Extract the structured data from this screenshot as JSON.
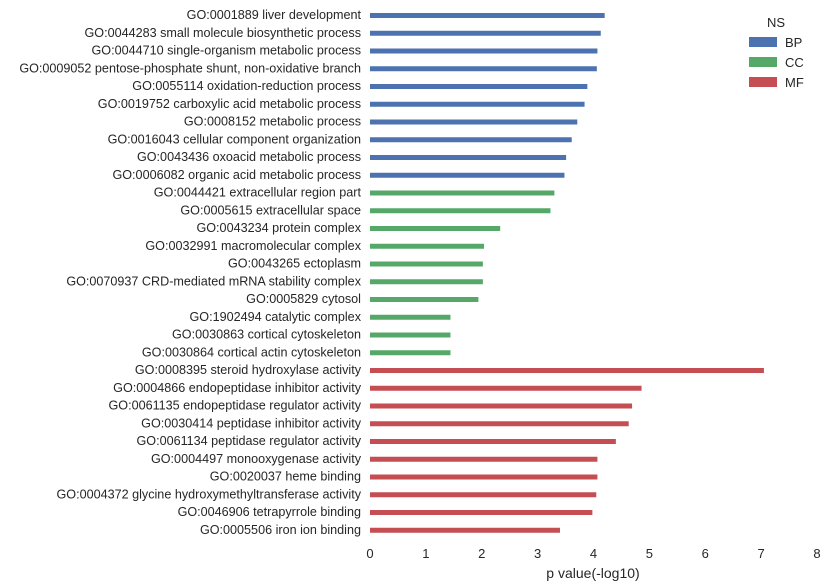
{
  "chart_data": {
    "type": "bar",
    "orientation": "horizontal",
    "xlabel": "p value(-log10)",
    "xlim": [
      0,
      8
    ],
    "xticks": [
      0,
      1,
      2,
      3,
      4,
      5,
      6,
      7,
      8
    ],
    "grid": false,
    "legend": {
      "title": "NS",
      "placement": "top-right",
      "entries": [
        {
          "name": "BP",
          "color": "#4c72b0"
        },
        {
          "name": "CC",
          "color": "#55a868"
        },
        {
          "name": "MF",
          "color": "#c44e52"
        }
      ]
    },
    "categories": [
      {
        "label": "GO:0001889 liver development",
        "value": 4.2,
        "ns": "BP"
      },
      {
        "label": "GO:0044283 small molecule biosynthetic process",
        "value": 4.13,
        "ns": "BP"
      },
      {
        "label": "GO:0044710 single-organism metabolic process",
        "value": 4.07,
        "ns": "BP"
      },
      {
        "label": "GO:0009052 pentose-phosphate shunt, non-oxidative branch",
        "value": 4.06,
        "ns": "BP"
      },
      {
        "label": "GO:0055114 oxidation-reduction process",
        "value": 3.89,
        "ns": "BP"
      },
      {
        "label": "GO:0019752 carboxylic acid metabolic process",
        "value": 3.84,
        "ns": "BP"
      },
      {
        "label": "GO:0008152 metabolic process",
        "value": 3.71,
        "ns": "BP"
      },
      {
        "label": "GO:0016043 cellular component organization",
        "value": 3.61,
        "ns": "BP"
      },
      {
        "label": "GO:0043436 oxoacid metabolic process",
        "value": 3.51,
        "ns": "BP"
      },
      {
        "label": "GO:0006082 organic acid metabolic process",
        "value": 3.48,
        "ns": "BP"
      },
      {
        "label": "GO:0044421 extracellular region part",
        "value": 3.3,
        "ns": "CC"
      },
      {
        "label": "GO:0005615 extracellular space",
        "value": 3.23,
        "ns": "CC"
      },
      {
        "label": "GO:0043234 protein complex",
        "value": 2.33,
        "ns": "CC"
      },
      {
        "label": "GO:0032991 macromolecular complex",
        "value": 2.04,
        "ns": "CC"
      },
      {
        "label": "GO:0043265 ectoplasm",
        "value": 2.02,
        "ns": "CC"
      },
      {
        "label": "GO:0070937 CRD-mediated mRNA stability complex",
        "value": 2.02,
        "ns": "CC"
      },
      {
        "label": "GO:0005829 cytosol",
        "value": 1.94,
        "ns": "CC"
      },
      {
        "label": "GO:1902494 catalytic complex",
        "value": 1.44,
        "ns": "CC"
      },
      {
        "label": "GO:0030863 cortical cytoskeleton",
        "value": 1.44,
        "ns": "CC"
      },
      {
        "label": "GO:0030864 cortical actin cytoskeleton",
        "value": 1.44,
        "ns": "CC"
      },
      {
        "label": "GO:0008395 steroid hydroxylase activity",
        "value": 7.05,
        "ns": "MF"
      },
      {
        "label": "GO:0004866 endopeptidase inhibitor activity",
        "value": 4.86,
        "ns": "MF"
      },
      {
        "label": "GO:0061135 endopeptidase regulator activity",
        "value": 4.69,
        "ns": "MF"
      },
      {
        "label": "GO:0030414 peptidase inhibitor activity",
        "value": 4.63,
        "ns": "MF"
      },
      {
        "label": "GO:0061134 peptidase regulator activity",
        "value": 4.4,
        "ns": "MF"
      },
      {
        "label": "GO:0004497 monooxygenase activity",
        "value": 4.07,
        "ns": "MF"
      },
      {
        "label": "GO:0020037 heme binding",
        "value": 4.07,
        "ns": "MF"
      },
      {
        "label": "GO:0004372 glycine hydroxymethyltransferase activity",
        "value": 4.05,
        "ns": "MF"
      },
      {
        "label": "GO:0046906 tetrapyrrole binding",
        "value": 3.98,
        "ns": "MF"
      },
      {
        "label": "GO:0005506 iron ion binding",
        "value": 3.4,
        "ns": "MF"
      }
    ]
  }
}
